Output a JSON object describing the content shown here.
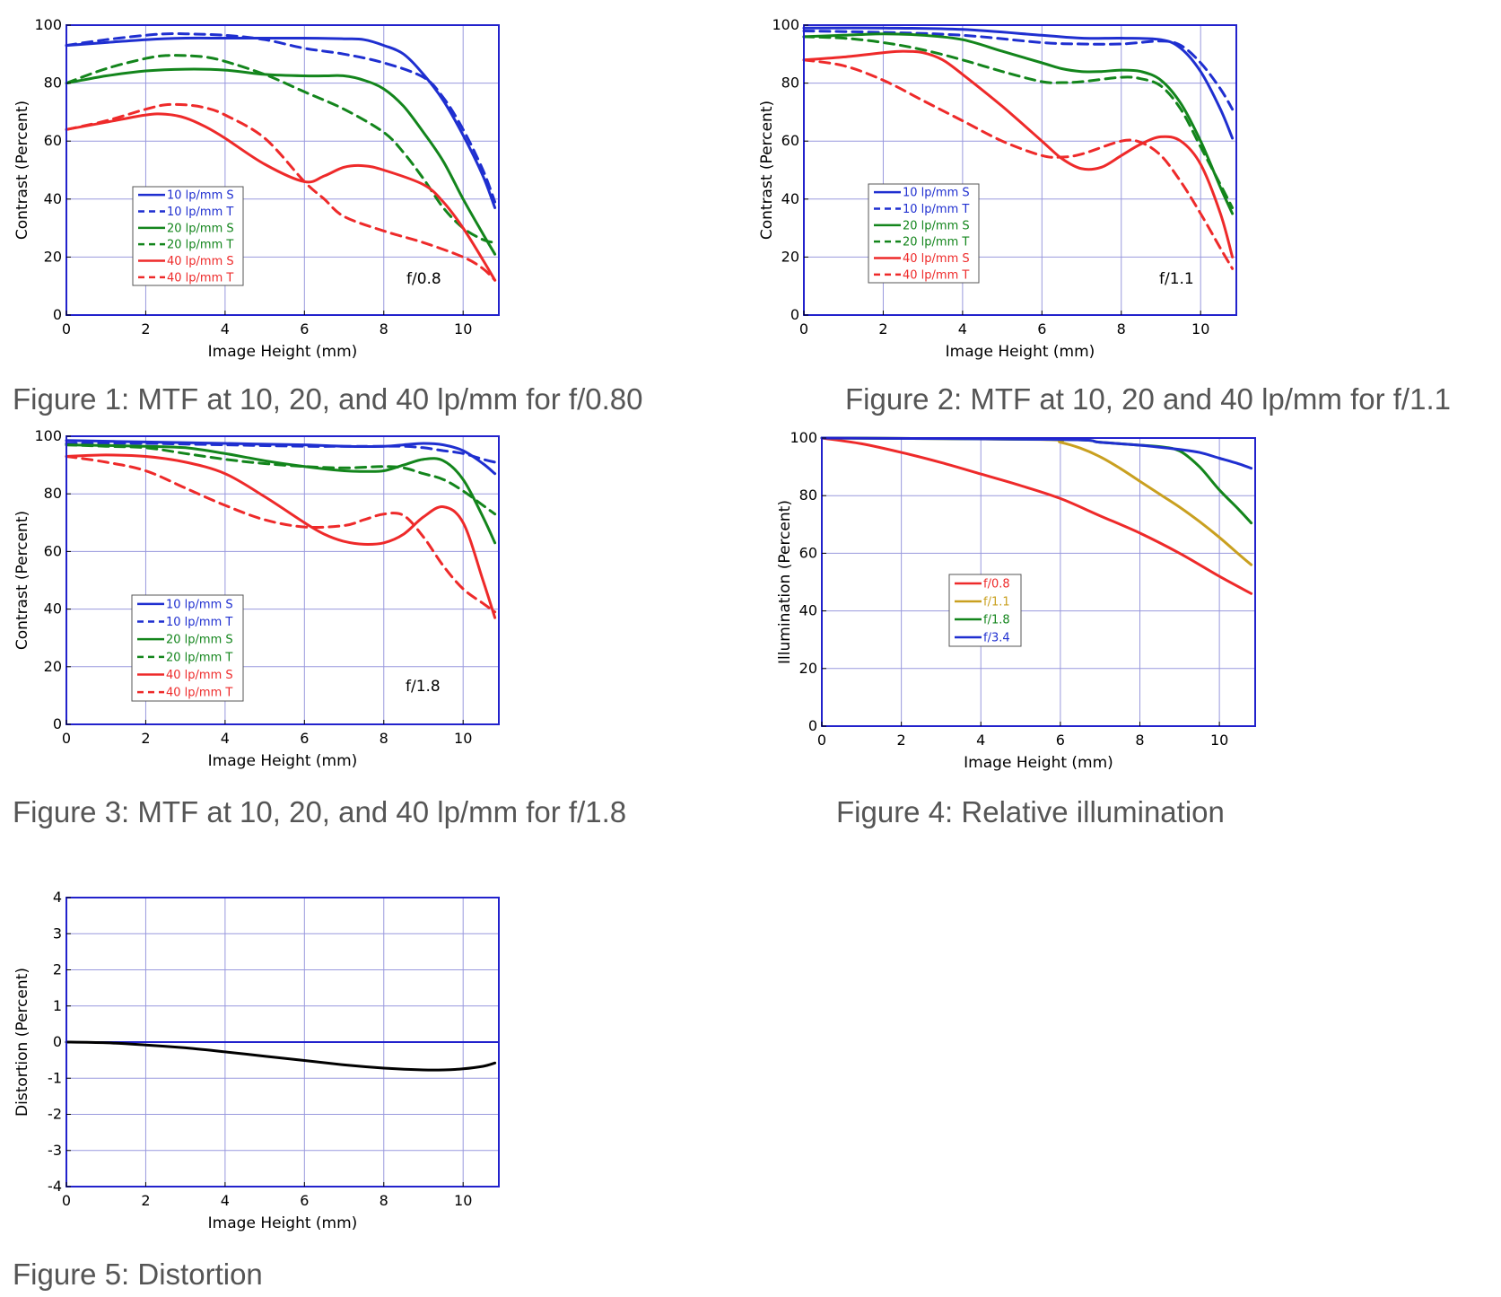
{
  "colors": {
    "blue": "#1f2fd0",
    "green": "#13851c",
    "red": "#ee2a2a",
    "gold": "#c9a020",
    "black": "#000000",
    "axis": "#2222cc",
    "grid": "#9999dd"
  },
  "chart_data": [
    {
      "type": "line",
      "caption": "Figure 1:  MTF at 10, 20, and 40 lp/mm for f/0.80",
      "annotation": "f/0.8",
      "xlabel": "Image Height (mm)",
      "ylabel": "Contrast (Percent)",
      "xlim": [
        0,
        10.9
      ],
      "ylim": [
        0,
        100
      ],
      "xticks": [
        0,
        2,
        4,
        6,
        8,
        10
      ],
      "yticks": [
        0,
        20,
        40,
        60,
        80,
        100
      ],
      "grid": true,
      "legend_position": "lower-left",
      "series": [
        {
          "name": "10 lp/mm S",
          "color": "blue",
          "dash": false,
          "x": [
            0,
            1,
            2,
            3,
            4,
            5,
            6,
            7,
            7.5,
            8,
            8.5,
            9,
            9.5,
            10,
            10.5,
            10.8
          ],
          "y": [
            93,
            94,
            95,
            95.5,
            95.5,
            95.5,
            95.5,
            95.3,
            95,
            93,
            90,
            83,
            74,
            62,
            48,
            37
          ]
        },
        {
          "name": "10 lp/mm T",
          "color": "blue",
          "dash": true,
          "x": [
            0,
            1,
            2,
            2.5,
            3,
            4,
            5,
            6,
            7,
            8,
            9,
            9.5,
            10,
            10.5,
            10.8
          ],
          "y": [
            93,
            95,
            96.5,
            97,
            97,
            96.5,
            95,
            92,
            90,
            87,
            82,
            75,
            64,
            50,
            39
          ]
        },
        {
          "name": "20 lp/mm S",
          "color": "green",
          "dash": false,
          "x": [
            0,
            1,
            2,
            3,
            4,
            5,
            6,
            6.5,
            7,
            7.5,
            8,
            8.5,
            9,
            9.5,
            10,
            10.5,
            10.8
          ],
          "y": [
            80,
            82.5,
            84.2,
            84.8,
            84.5,
            83,
            82.5,
            82.5,
            82.5,
            81,
            78,
            72,
            63,
            53,
            40,
            28,
            21
          ]
        },
        {
          "name": "20 lp/mm T",
          "color": "green",
          "dash": true,
          "x": [
            0,
            1,
            2,
            2.5,
            3,
            3.5,
            4,
            5,
            6,
            7,
            8,
            8.5,
            9,
            9.5,
            10,
            10.5,
            10.8
          ],
          "y": [
            80,
            85,
            88.5,
            89.5,
            89.5,
            89,
            87.5,
            83,
            77,
            71,
            63,
            56,
            47,
            37,
            30,
            26,
            25
          ]
        },
        {
          "name": "40 lp/mm S",
          "color": "red",
          "dash": false,
          "x": [
            0,
            1,
            2,
            2.5,
            3,
            3.5,
            4,
            5,
            6,
            6.5,
            7,
            7.5,
            8,
            9,
            9.5,
            10,
            10.5,
            10.8
          ],
          "y": [
            64,
            66.5,
            69,
            69.3,
            68,
            65,
            61,
            52,
            46,
            48,
            51,
            51.5,
            50,
            45,
            39,
            30,
            19,
            12
          ]
        },
        {
          "name": "40 lp/mm T",
          "color": "red",
          "dash": true,
          "x": [
            0,
            1,
            2,
            2.5,
            3,
            3.5,
            4,
            5,
            6,
            6.5,
            7,
            8,
            9,
            10,
            10.5,
            10.8
          ],
          "y": [
            64,
            67,
            71,
            72.5,
            72.5,
            71.5,
            69,
            61,
            46,
            40,
            34,
            29,
            25,
            20,
            16,
            12
          ]
        }
      ]
    },
    {
      "type": "line",
      "caption": "Figure 2:  MTF at 10, 20 and 40 lp/mm for f/1.1",
      "annotation": "f/1.1",
      "xlabel": "Image Height (mm)",
      "ylabel": "Contrast (Percent)",
      "xlim": [
        0,
        10.9
      ],
      "ylim": [
        0,
        100
      ],
      "xticks": [
        0,
        2,
        4,
        6,
        8,
        10
      ],
      "yticks": [
        0,
        20,
        40,
        60,
        80,
        100
      ],
      "grid": true,
      "legend_position": "lower-left",
      "series": [
        {
          "name": "10 lp/mm S",
          "color": "blue",
          "dash": false,
          "x": [
            0,
            2,
            4,
            6,
            7,
            8,
            9,
            9.5,
            10,
            10.5,
            10.8
          ],
          "y": [
            99,
            99,
            98.5,
            96.5,
            95.5,
            95.5,
            95,
            92,
            84,
            71,
            61
          ]
        },
        {
          "name": "10 lp/mm T",
          "color": "blue",
          "dash": true,
          "x": [
            0,
            2,
            4,
            6,
            7,
            8,
            9,
            9.5,
            10,
            10.5,
            10.8
          ],
          "y": [
            98,
            97.5,
            96.5,
            94,
            93.5,
            93.5,
            94.5,
            93,
            87,
            78,
            71
          ]
        },
        {
          "name": "20 lp/mm S",
          "color": "green",
          "dash": false,
          "x": [
            0,
            1,
            2,
            3,
            4,
            5,
            6,
            6.5,
            7,
            7.5,
            8,
            8.5,
            9,
            9.5,
            10,
            10.5,
            10.8
          ],
          "y": [
            96,
            96.5,
            97,
            96.5,
            95,
            91,
            87,
            85,
            84,
            84,
            84.5,
            84,
            81,
            73,
            60,
            44,
            35
          ]
        },
        {
          "name": "20 lp/mm T",
          "color": "green",
          "dash": true,
          "x": [
            0,
            1,
            2,
            3,
            4,
            5,
            6,
            6.5,
            7,
            8,
            8.5,
            9,
            9.5,
            10,
            10.5,
            10.8
          ],
          "y": [
            96,
            95.5,
            94,
            91.5,
            88,
            84,
            80.5,
            80.2,
            80.5,
            82,
            81.5,
            79,
            71,
            58,
            45,
            37
          ]
        },
        {
          "name": "40 lp/mm S",
          "color": "red",
          "dash": false,
          "x": [
            0,
            1,
            2,
            2.5,
            3,
            3.5,
            4,
            5,
            6,
            6.5,
            7,
            7.5,
            8,
            8.5,
            9,
            9.5,
            10,
            10.5,
            10.8
          ],
          "y": [
            88,
            89,
            90.5,
            91,
            90.5,
            88,
            83,
            72,
            60,
            54,
            50.5,
            51,
            55,
            59,
            61.5,
            60,
            52,
            35,
            20
          ]
        },
        {
          "name": "40 lp/mm T",
          "color": "red",
          "dash": true,
          "x": [
            0,
            1,
            2,
            3,
            4,
            5,
            6,
            6.5,
            7,
            8,
            8.5,
            9,
            9.5,
            10,
            10.5,
            10.8
          ],
          "y": [
            88,
            86,
            81,
            74,
            67,
            60,
            55,
            54.5,
            55.5,
            60,
            59.5,
            55,
            46,
            35,
            23,
            16
          ]
        }
      ]
    },
    {
      "type": "line",
      "caption": "Figure 3:  MTF at 10, 20, and 40 lp/mm for f/1.8",
      "annotation": "f/1.8",
      "xlabel": "Image Height (mm)",
      "ylabel": "Contrast (Percent)",
      "xlim": [
        0,
        10.9
      ],
      "ylim": [
        0,
        100
      ],
      "xticks": [
        0,
        2,
        4,
        6,
        8,
        10
      ],
      "yticks": [
        0,
        20,
        40,
        60,
        80,
        100
      ],
      "grid": true,
      "legend_position": "lower-left",
      "series": [
        {
          "name": "10 lp/mm S",
          "color": "blue",
          "dash": false,
          "x": [
            0,
            2,
            4,
            6,
            7,
            8,
            8.5,
            9,
            9.5,
            10,
            10.5,
            10.8
          ],
          "y": [
            98.5,
            98,
            97.5,
            97,
            96.5,
            96.5,
            97,
            97.5,
            97,
            95,
            90.5,
            87
          ]
        },
        {
          "name": "10 lp/mm T",
          "color": "blue",
          "dash": true,
          "x": [
            0,
            2,
            4,
            6,
            7,
            8,
            8.5,
            9,
            9.5,
            10,
            10.5,
            10.8
          ],
          "y": [
            97.5,
            97.5,
            97,
            96.5,
            96.5,
            96.5,
            96.5,
            96,
            95,
            94,
            92,
            91
          ]
        },
        {
          "name": "20 lp/mm S",
          "color": "green",
          "dash": false,
          "x": [
            0,
            2,
            3,
            4,
            5,
            6,
            7,
            7.5,
            8,
            8.5,
            9,
            9.5,
            10,
            10.5,
            10.8
          ],
          "y": [
            97,
            96.5,
            96,
            94,
            91.5,
            89.5,
            88,
            87.8,
            88,
            90,
            92,
            91.5,
            85,
            72,
            63
          ]
        },
        {
          "name": "20 lp/mm T",
          "color": "green",
          "dash": true,
          "x": [
            0,
            1,
            2,
            3,
            4,
            5,
            6,
            7,
            8,
            8.5,
            9,
            9.5,
            10,
            10.5,
            10.8
          ],
          "y": [
            97,
            96.5,
            96,
            94,
            92,
            90.5,
            89.5,
            89,
            89.5,
            89,
            87,
            85,
            81,
            76,
            73
          ]
        },
        {
          "name": "40 lp/mm S",
          "color": "red",
          "dash": false,
          "x": [
            0,
            1,
            2,
            3,
            4,
            5,
            6,
            6.5,
            7,
            7.5,
            8,
            8.5,
            9,
            9.5,
            10,
            10.5,
            10.8
          ],
          "y": [
            93,
            93.5,
            93,
            91,
            87,
            79,
            70,
            66,
            63.5,
            62.5,
            63,
            66,
            72,
            75.5,
            70,
            50,
            37
          ]
        },
        {
          "name": "40 lp/mm T",
          "color": "red",
          "dash": true,
          "x": [
            0,
            1,
            2,
            3,
            4,
            5,
            6,
            7,
            7.5,
            8,
            8.5,
            9,
            9.5,
            10,
            10.5,
            10.8
          ],
          "y": [
            93,
            91,
            88,
            82,
            76,
            71,
            68.5,
            69,
            71,
            73,
            72.5,
            65,
            55,
            47,
            42,
            39
          ]
        }
      ]
    },
    {
      "type": "line",
      "caption": "Figure 4:  Relative illumination",
      "xlabel": "Image Height (mm)",
      "ylabel": "Illumination (Percent)",
      "xlim": [
        0,
        10.9
      ],
      "ylim": [
        0,
        100
      ],
      "xticks": [
        0,
        2,
        4,
        6,
        8,
        10
      ],
      "yticks": [
        0,
        20,
        40,
        60,
        80,
        100
      ],
      "grid": true,
      "legend_position": "center-left",
      "series": [
        {
          "name": "f/0.8",
          "color": "red",
          "dash": false,
          "x": [
            0,
            1,
            2,
            3,
            4,
            5,
            6,
            7,
            8,
            9,
            10,
            10.8
          ],
          "y": [
            100,
            98,
            95,
            91.5,
            87.5,
            83.5,
            79,
            73,
            67,
            60,
            52,
            46
          ]
        },
        {
          "name": "f/1.1",
          "color": "gold",
          "dash": false,
          "x": [
            0,
            5.5,
            6,
            6.5,
            7,
            7.5,
            8,
            8.5,
            9,
            9.5,
            10,
            10.5,
            10.8
          ],
          "y": [
            100,
            99.5,
            98.5,
            96.5,
            93.5,
            89.5,
            85,
            80.5,
            76,
            71,
            65.5,
            59.5,
            56
          ]
        },
        {
          "name": "f/1.8",
          "color": "green",
          "dash": false,
          "x": [
            0,
            6,
            7,
            8,
            8.5,
            9,
            9.5,
            10,
            10.5,
            10.8
          ],
          "y": [
            100,
            99.5,
            98.5,
            97.5,
            97,
            95.5,
            90,
            82,
            75,
            70.5
          ]
        },
        {
          "name": "f/3.4",
          "color": "blue",
          "dash": false,
          "x": [
            0,
            6,
            7,
            8,
            9,
            9.5,
            10,
            10.5,
            10.8
          ],
          "y": [
            100,
            99.5,
            98.5,
            97.5,
            96,
            95,
            93,
            91,
            89.5
          ]
        }
      ]
    },
    {
      "type": "line",
      "caption": "Figure 5:  Distortion",
      "xlabel": "Image Height (mm)",
      "ylabel": "Distortion (Percent)",
      "xlim": [
        0,
        10.9
      ],
      "ylim": [
        -4,
        4
      ],
      "xticks": [
        0,
        2,
        4,
        6,
        8,
        10
      ],
      "yticks": [
        -4,
        -3,
        -2,
        -1,
        0,
        1,
        2,
        3,
        4
      ],
      "grid": true,
      "series": [
        {
          "color": "black",
          "dash": false,
          "x": [
            0,
            1,
            2,
            3,
            4,
            5,
            6,
            7,
            8,
            9,
            9.5,
            10,
            10.5,
            10.8
          ],
          "y": [
            0,
            -0.02,
            -0.08,
            -0.16,
            -0.27,
            -0.39,
            -0.51,
            -0.63,
            -0.72,
            -0.77,
            -0.77,
            -0.74,
            -0.67,
            -0.58
          ]
        }
      ]
    }
  ]
}
